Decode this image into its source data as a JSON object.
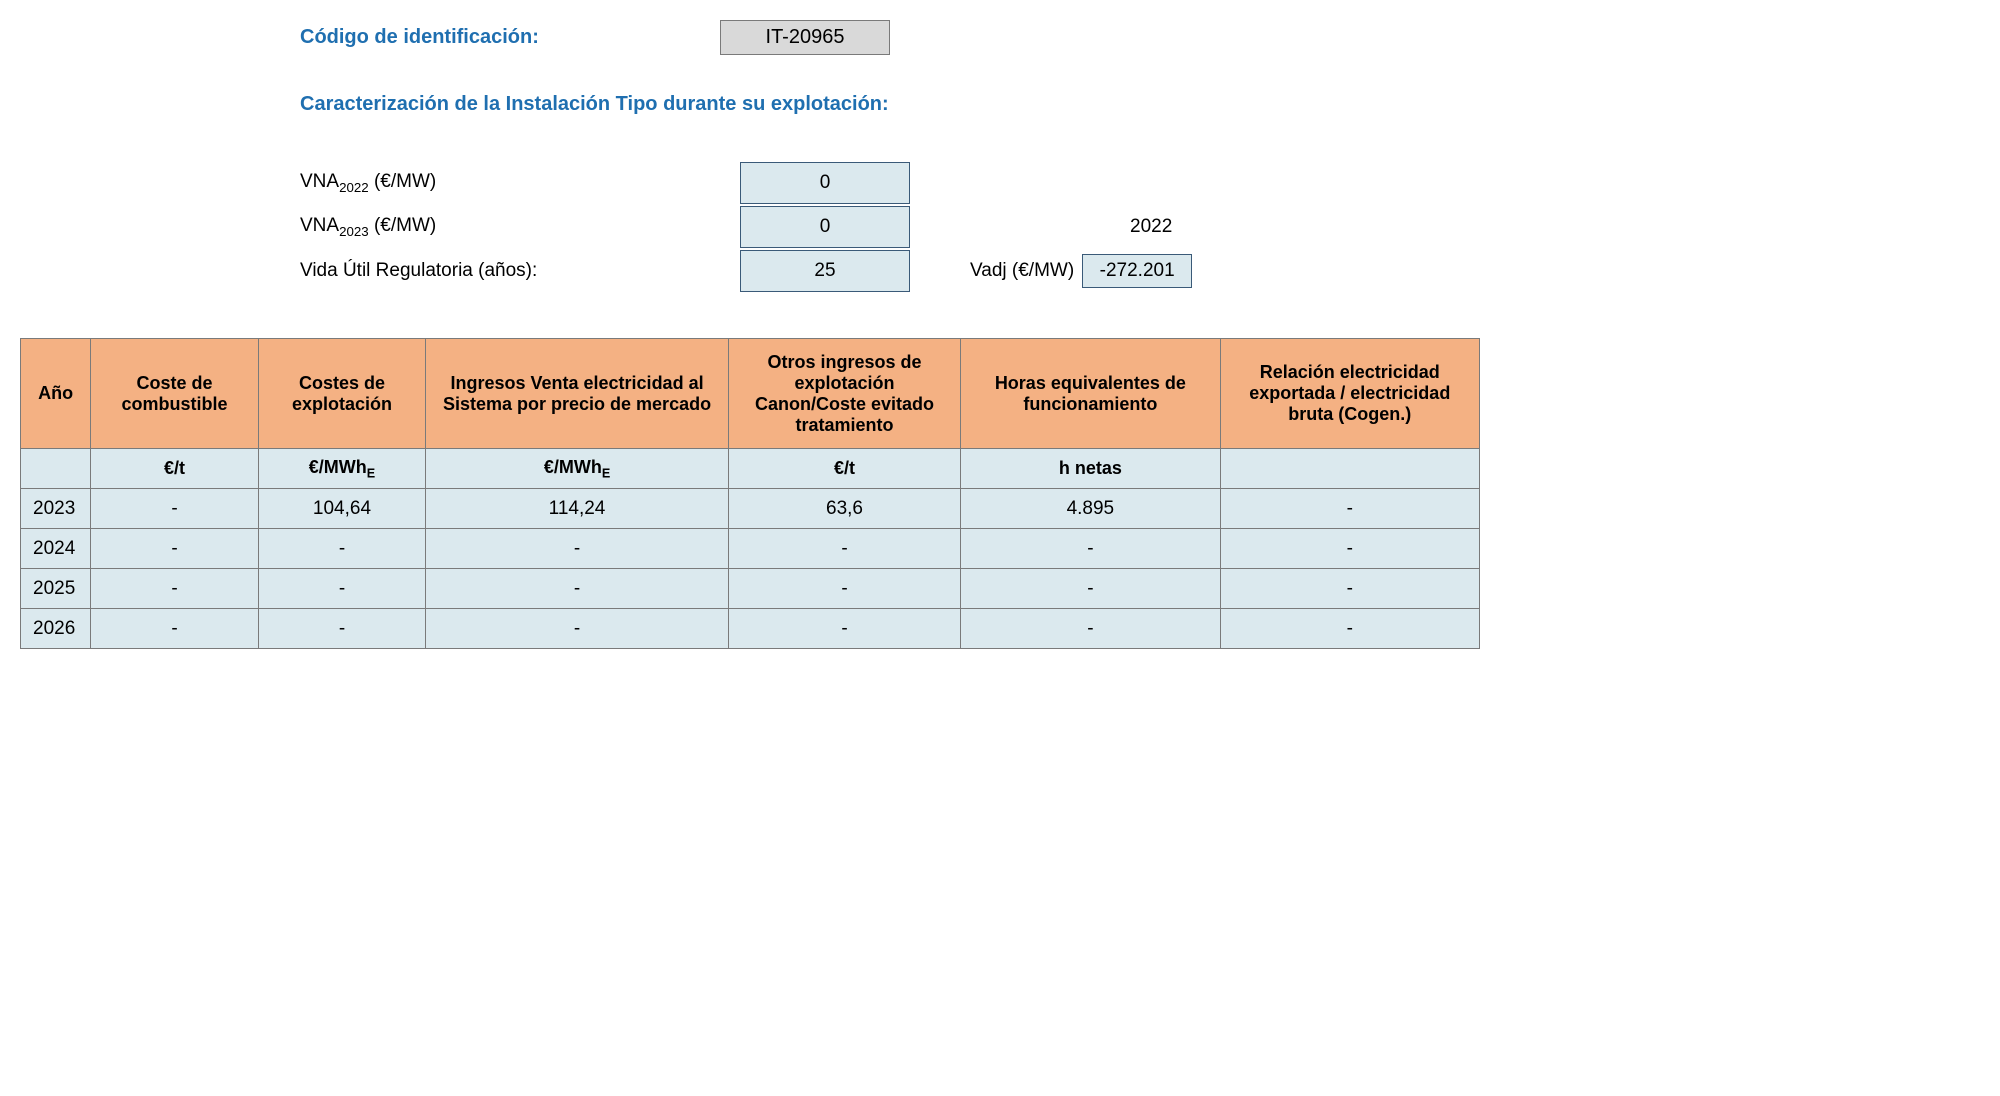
{
  "header": {
    "id_label": "Código de identificación:",
    "id_value": "IT-20965",
    "section_title": "Caracterización de la Instalación Tipo durante su explotación:"
  },
  "params": {
    "vna2022_label_prefix": "VNA",
    "vna2022_sub": "2022",
    "vna2022_label_suffix": " (€/MW)",
    "vna2022_value": "0",
    "vna2023_label_prefix": "VNA",
    "vna2023_sub": "2023",
    "vna2023_label_suffix": " (€/MW)",
    "vna2023_value": "0",
    "year_right": "2022",
    "vida_label": "Vida Útil Regulatoria (años):",
    "vida_value": "25",
    "vadj_label": "Vadj (€/MW)",
    "vadj_value": "-272.201"
  },
  "table": {
    "headers": {
      "ano": "Año",
      "combustible": "Coste de combustible",
      "explotacion": "Costes de explotación",
      "ingresos": "Ingresos Venta electricidad al Sistema por precio de mercado",
      "otros": "Otros ingresos de explotación Canon/Coste evitado tratamiento",
      "horas": "Horas equivalentes de funcionamiento",
      "relacion": "Relación electricidad exportada / electricidad bruta (Cogen.)"
    },
    "units": {
      "ano": "",
      "combustible": "€/t",
      "explotacion_prefix": "€/MWh",
      "explotacion_sub": "E",
      "ingresos_prefix": "€/MWh",
      "ingresos_sub": "E",
      "otros": "€/t",
      "horas": "h netas",
      "relacion": ""
    },
    "rows": [
      {
        "ano": "2023",
        "combustible": "-",
        "explotacion": "104,64",
        "ingresos": "114,24",
        "otros": "63,6",
        "horas": "4.895",
        "relacion": "-"
      },
      {
        "ano": "2024",
        "combustible": "-",
        "explotacion": "-",
        "ingresos": "-",
        "otros": "-",
        "horas": "-",
        "relacion": "-"
      },
      {
        "ano": "2025",
        "combustible": "-",
        "explotacion": "-",
        "ingresos": "-",
        "otros": "-",
        "horas": "-",
        "relacion": "-"
      },
      {
        "ano": "2026",
        "combustible": "-",
        "explotacion": "-",
        "ingresos": "-",
        "otros": "-",
        "horas": "-",
        "relacion": "-"
      }
    ]
  },
  "styling": {
    "header_bg": "#f4b183",
    "data_bg": "#dbe9ee",
    "id_box_bg": "#d9d9d9",
    "border_color": "#7a7a7a",
    "title_color": "#1f6fb0",
    "param_border": "#3a5a78"
  }
}
